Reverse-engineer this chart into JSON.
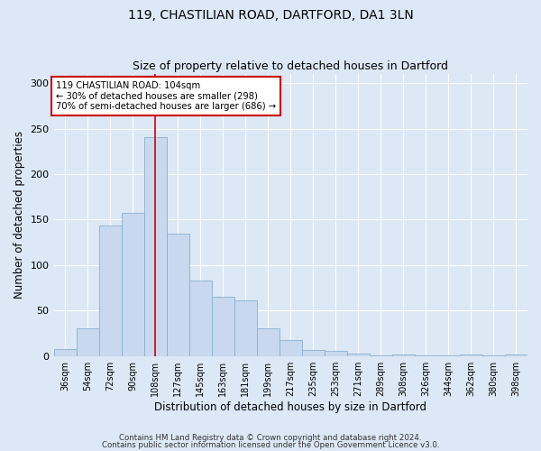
{
  "title_line1": "119, CHASTILIAN ROAD, DARTFORD, DA1 3LN",
  "title_line2": "Size of property relative to detached houses in Dartford",
  "xlabel": "Distribution of detached houses by size in Dartford",
  "ylabel": "Number of detached properties",
  "categories": [
    "36sqm",
    "54sqm",
    "72sqm",
    "90sqm",
    "108sqm",
    "127sqm",
    "145sqm",
    "163sqm",
    "181sqm",
    "199sqm",
    "217sqm",
    "235sqm",
    "253sqm",
    "271sqm",
    "289sqm",
    "308sqm",
    "326sqm",
    "344sqm",
    "362sqm",
    "380sqm",
    "398sqm"
  ],
  "values": [
    8,
    30,
    143,
    157,
    241,
    135,
    83,
    65,
    61,
    30,
    18,
    7,
    6,
    3,
    1,
    2,
    1,
    1,
    2,
    1,
    2
  ],
  "bar_color": "#c8d8ee",
  "bar_edge_color": "#8ab0d0",
  "vline_x": 4,
  "vline_color": "#cc0000",
  "annotation_text": "119 CHASTILIAN ROAD: 104sqm\n← 30% of detached houses are smaller (298)\n70% of semi-detached houses are larger (686) →",
  "annotation_box_color": "#ffffff",
  "annotation_box_edge": "#cc0000",
  "ylim": [
    0,
    310
  ],
  "yticks": [
    0,
    50,
    100,
    150,
    200,
    250,
    300
  ],
  "footer_line1": "Contains HM Land Registry data © Crown copyright and database right 2024.",
  "footer_line2": "Contains public sector information licensed under the Open Government Licence v3.0.",
  "bg_color": "#dce8f5",
  "plot_bg_color": "#dce8f5"
}
